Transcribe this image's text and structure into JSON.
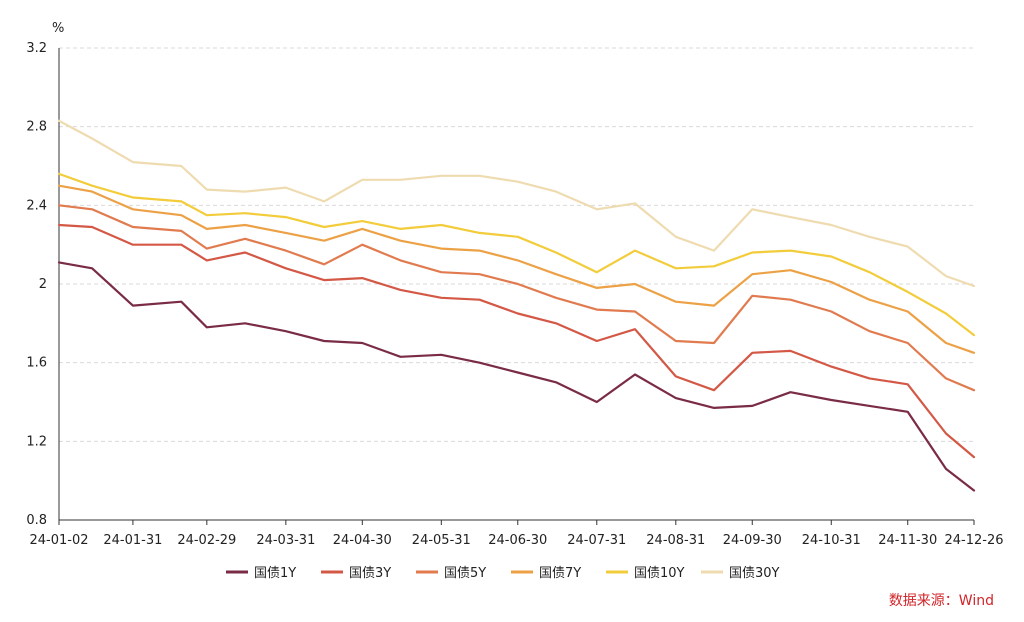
{
  "chart_data": {
    "type": "line",
    "title": "",
    "ylabel": "%",
    "ylim": [
      0.8,
      3.2
    ],
    "yticks": [
      "0.8",
      "1.2",
      "1.6",
      "2",
      "2.4",
      "2.8",
      "3.2"
    ],
    "grid": "horizontal-dashed",
    "legend_position": "bottom",
    "x": [
      "24-01-02",
      "24-01-15",
      "24-01-31",
      "24-02-19",
      "24-02-29",
      "24-03-15",
      "24-03-31",
      "24-04-15",
      "24-04-30",
      "24-05-15",
      "24-05-31",
      "24-06-15",
      "24-06-30",
      "24-07-15",
      "24-07-31",
      "24-08-15",
      "24-08-31",
      "24-09-15",
      "24-09-30",
      "24-10-15",
      "24-10-31",
      "24-11-15",
      "24-11-30",
      "24-12-15",
      "24-12-26"
    ],
    "xtick_labels": [
      "24-01-02",
      "24-01-31",
      "24-02-29",
      "24-03-31",
      "24-04-30",
      "24-05-31",
      "24-06-30",
      "24-07-31",
      "24-08-31",
      "24-09-30",
      "24-10-31",
      "24-11-30",
      "24-12-26"
    ],
    "series": [
      {
        "name": "国债1Y",
        "color": "#7a2b45",
        "values": [
          2.11,
          2.08,
          1.89,
          1.91,
          1.78,
          1.8,
          1.76,
          1.71,
          1.7,
          1.63,
          1.64,
          1.6,
          1.55,
          1.5,
          1.4,
          1.54,
          1.42,
          1.37,
          1.38,
          1.45,
          1.41,
          1.38,
          1.35,
          1.06,
          0.95
        ]
      },
      {
        "name": "国债3Y",
        "color": "#d35846",
        "values": [
          2.3,
          2.29,
          2.2,
          2.2,
          2.12,
          2.16,
          2.08,
          2.02,
          2.03,
          1.97,
          1.93,
          1.92,
          1.85,
          1.8,
          1.71,
          1.77,
          1.53,
          1.46,
          1.65,
          1.66,
          1.58,
          1.52,
          1.49,
          1.24,
          1.12
        ]
      },
      {
        "name": "国债5Y",
        "color": "#e17b4f",
        "values": [
          2.4,
          2.38,
          2.29,
          2.27,
          2.18,
          2.23,
          2.17,
          2.1,
          2.2,
          2.12,
          2.06,
          2.05,
          2.0,
          1.93,
          1.87,
          1.86,
          1.71,
          1.7,
          1.94,
          1.92,
          1.86,
          1.76,
          1.7,
          1.52,
          1.46
        ]
      },
      {
        "name": "国债7Y",
        "color": "#eda146",
        "values": [
          2.5,
          2.47,
          2.38,
          2.35,
          2.28,
          2.3,
          2.26,
          2.22,
          2.28,
          2.22,
          2.18,
          2.17,
          2.12,
          2.05,
          1.98,
          2.0,
          1.91,
          1.89,
          2.05,
          2.07,
          2.01,
          1.92,
          1.86,
          1.7,
          1.65
        ]
      },
      {
        "name": "国债10Y",
        "color": "#f2cc3a",
        "values": [
          2.56,
          2.5,
          2.44,
          2.42,
          2.35,
          2.36,
          2.34,
          2.29,
          2.32,
          2.28,
          2.3,
          2.26,
          2.24,
          2.16,
          2.06,
          2.17,
          2.08,
          2.09,
          2.16,
          2.17,
          2.14,
          2.06,
          1.96,
          1.85,
          1.74
        ]
      },
      {
        "name": "国债30Y",
        "color": "#efdbb0",
        "values": [
          2.83,
          2.74,
          2.62,
          2.6,
          2.48,
          2.47,
          2.49,
          2.42,
          2.53,
          2.53,
          2.55,
          2.55,
          2.52,
          2.47,
          2.38,
          2.41,
          2.24,
          2.17,
          2.38,
          2.34,
          2.3,
          2.24,
          2.19,
          2.04,
          1.99
        ]
      }
    ]
  },
  "source": {
    "text": "数据来源：Wind",
    "color": "#d0252a"
  }
}
